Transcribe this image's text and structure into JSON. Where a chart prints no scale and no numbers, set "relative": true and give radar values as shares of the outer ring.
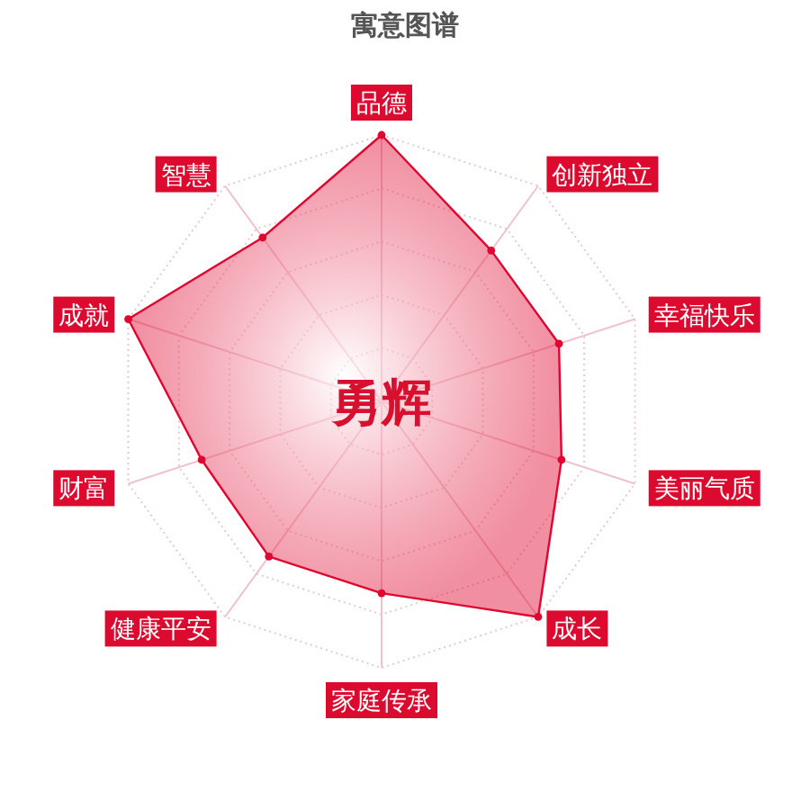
{
  "chart_data": {
    "type": "radar",
    "title": "寓意图谱",
    "relative": true,
    "grid": true,
    "marker": "circle",
    "categories": [
      "品德",
      "创新独立",
      "幸福快乐",
      "美丽气质",
      "成长",
      "家庭传承",
      "健康平安",
      "财富",
      "成就",
      "智慧"
    ],
    "series": [
      {
        "color": "#e0062f",
        "values": [
          1,
          0.7,
          0.7,
          0.71,
          1,
          0.72,
          0.72,
          0.71,
          1,
          0.76
        ]
      }
    ],
    "annotations": [
      "勇辉"
    ]
  }
}
